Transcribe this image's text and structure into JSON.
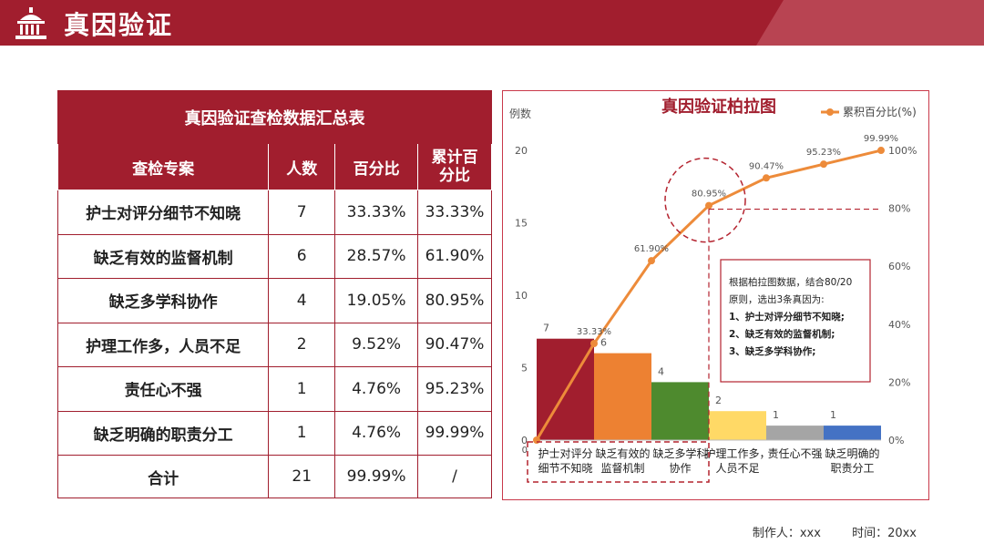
{
  "header": {
    "title": "真因验证"
  },
  "table": {
    "caption": "真因验证查检数据汇总表",
    "headers": [
      "查检专案",
      "人数",
      "百分比",
      "累计百\n分比"
    ],
    "rows": [
      [
        "护士对评分细节不知晓",
        "7",
        "33.33%",
        "33.33%"
      ],
      [
        "缺乏有效的监督机制",
        "6",
        "28.57%",
        "61.90%"
      ],
      [
        "缺乏多学科协作",
        "4",
        "19.05%",
        "80.95%"
      ],
      [
        "护理工作多，人员不足",
        "2",
        "9.52%",
        "90.47%"
      ],
      [
        "责任心不强",
        "1",
        "4.76%",
        "95.23%"
      ],
      [
        "缺乏明确的职责分工",
        "1",
        "4.76%",
        "99.99%"
      ]
    ],
    "total": [
      "合计",
      "21",
      "99.99%",
      "/"
    ]
  },
  "chart_data": {
    "type": "bar",
    "title": "真因验证柏拉图",
    "ylabel": "例数",
    "ylim": [
      0,
      20
    ],
    "y2lim": [
      0,
      100
    ],
    "yticks": [
      "0",
      "5",
      "10",
      "15",
      "20"
    ],
    "y2ticks": [
      "0%",
      "20%",
      "40%",
      "60%",
      "80%",
      "100%"
    ],
    "categories": [
      "护士对评分\n细节不知晓",
      "缺乏有效的\n监督机制",
      "缺乏多学科\n协作",
      "护理工作多，\n人员不足",
      "责任心不强",
      "缺乏明确的\n职责分工"
    ],
    "values": [
      7,
      6,
      4,
      2,
      1,
      1
    ],
    "bar_colors": [
      "#a11e2e",
      "#ed8132",
      "#4e8a2e",
      "#ffd966",
      "#a5a5a5",
      "#4472c4"
    ],
    "line": {
      "name": "累积百分比(%)",
      "values": [
        0,
        33.33,
        61.9,
        80.95,
        90.47,
        95.23,
        99.99
      ],
      "labels": [
        "0",
        "33.33%",
        "61.90%",
        "80.95%",
        "90.47%",
        "95.23%",
        "99.99%"
      ],
      "color": "#ed8b3a"
    },
    "legend": "top-right",
    "annotation": {
      "lines": [
        "根据柏拉图数据，结合80/20",
        "原则，选出3条真因为:",
        "1、护士对评分细节不知晓;",
        "2、缺乏有效的监督机制;",
        "3、缺乏多学科协作;"
      ]
    }
  },
  "footer": {
    "maker": "制作人：xxx",
    "time": "时间：20xx"
  },
  "colors": {
    "brand": "#a11e2e",
    "accent": "#ed8b3a"
  }
}
